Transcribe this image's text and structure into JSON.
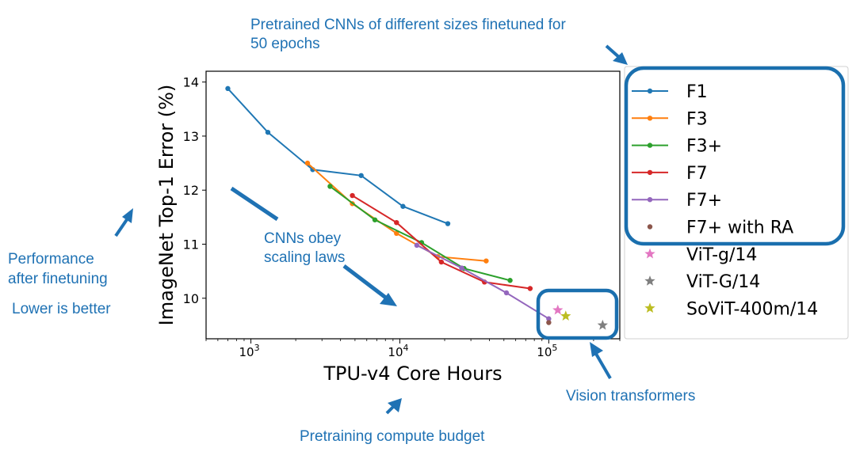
{
  "chart_data": {
    "type": "line",
    "xlabel": "TPU-v4 Core Hours",
    "ylabel": "ImageNet Top-1 Error (%)",
    "xscale": "log",
    "xlim": [
      500,
      300000
    ],
    "ylim": [
      9.25,
      14.2
    ],
    "xticks": [
      {
        "value": 1000,
        "base": "10",
        "exp": "3"
      },
      {
        "value": 10000,
        "base": "10",
        "exp": "4"
      },
      {
        "value": 100000,
        "base": "10",
        "exp": "5"
      }
    ],
    "yticks": [
      {
        "value": 10,
        "label": "10"
      },
      {
        "value": 11,
        "label": "11"
      },
      {
        "value": 12,
        "label": "12"
      },
      {
        "value": 13,
        "label": "13"
      },
      {
        "value": 14,
        "label": "14"
      }
    ],
    "legend_position": "right",
    "series": [
      {
        "name": "F1",
        "kind": "line",
        "color": "#1f77b4",
        "x": [
          700,
          1300,
          2600,
          5500,
          10500,
          21000
        ],
        "y": [
          13.88,
          13.07,
          12.38,
          12.27,
          11.7,
          11.38
        ]
      },
      {
        "name": "F3",
        "kind": "line",
        "color": "#ff7f0e",
        "x": [
          2400,
          4800,
          9500,
          18000,
          38000
        ],
        "y": [
          12.5,
          11.75,
          11.2,
          10.77,
          10.69
        ]
      },
      {
        "name": "F3+",
        "kind": "line",
        "color": "#2ca02c",
        "x": [
          3400,
          6800,
          14000,
          27000,
          55000
        ],
        "y": [
          12.07,
          11.45,
          11.03,
          10.55,
          10.33
        ]
      },
      {
        "name": "F7",
        "kind": "line",
        "color": "#d62728",
        "x": [
          4800,
          9500,
          19000,
          37000,
          75000
        ],
        "y": [
          11.9,
          11.4,
          10.67,
          10.3,
          10.18
        ]
      },
      {
        "name": "F7+",
        "kind": "line",
        "color": "#9467bd",
        "x": [
          13000,
          26000,
          52000,
          100000
        ],
        "y": [
          10.98,
          10.56,
          10.1,
          9.62
        ]
      },
      {
        "name": "F7+ with RA",
        "kind": "point",
        "color": "#8c564b",
        "x": [
          100000
        ],
        "y": [
          9.55
        ]
      },
      {
        "name": "ViT-g/14",
        "kind": "star",
        "color": "#e377c2",
        "x": [
          115000
        ],
        "y": [
          9.78
        ]
      },
      {
        "name": "ViT-G/14",
        "kind": "star",
        "color": "#7f7f7f",
        "x": [
          230000
        ],
        "y": [
          9.5
        ]
      },
      {
        "name": "SoViT-400m/14",
        "kind": "star",
        "color": "#bcbd22",
        "x": [
          130000
        ],
        "y": [
          9.67
        ]
      }
    ]
  },
  "annotations": {
    "cnn_title_line1": "Pretrained CNNs of different sizes finetuned for",
    "cnn_title_line2": "50 epochs",
    "perf_line1": "Performance",
    "perf_line2": "after finetuning",
    "lower_better": "Lower is better",
    "scaling_line1": "CNNs obey",
    "scaling_line2": "scaling laws",
    "vision_transformers": "Vision transformers",
    "compute_budget": "Pretraining compute budget"
  },
  "colors": {
    "annotation_blue": "#1f72b4",
    "highlight_box": "#1a6fae"
  }
}
